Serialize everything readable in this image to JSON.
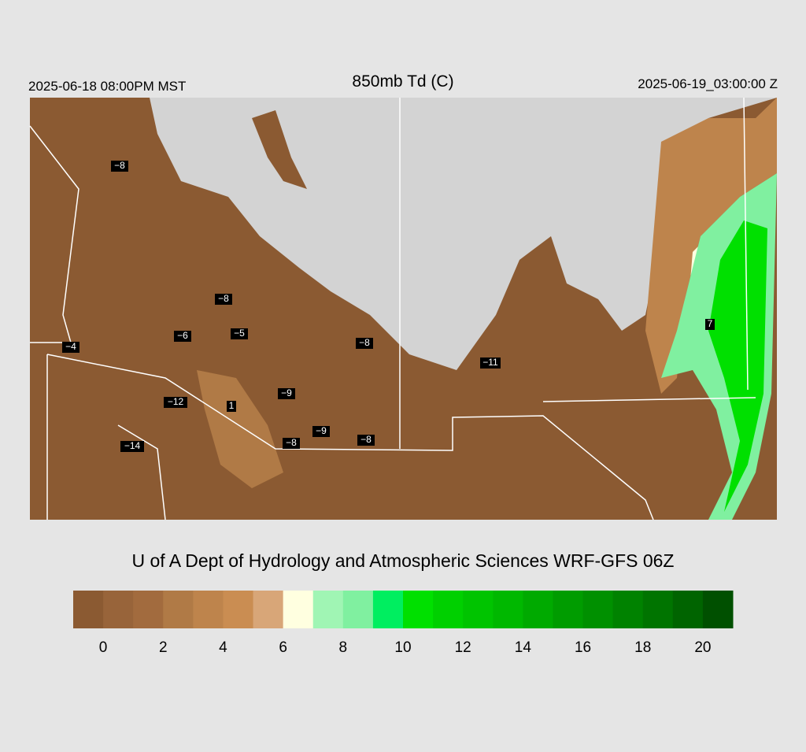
{
  "header": {
    "valid_local": "2025-06-18 08:00PM MST",
    "title": "850mb Td (C)",
    "valid_utc": "2025-06-19_03:00:00 Z"
  },
  "map": {
    "station_labels": [
      "−8",
      "−8",
      "−4",
      "−6",
      "−5",
      "−8",
      "−12",
      "1",
      "−9",
      "−9",
      "−8",
      "−8",
      "−14",
      "−11",
      "7"
    ]
  },
  "credit": "U of A Dept of Hydrology and Atmospheric Sciences WRF-GFS 06Z",
  "colorbar": {
    "range": [
      -1,
      21
    ],
    "colors": [
      "#8b5a32",
      "#98643a",
      "#a26b3e",
      "#b07a46",
      "#be844c",
      "#ca8d52",
      "#d8a678",
      "#ffffe0",
      "#a0f5b4",
      "#80f0a0",
      "#00ee60",
      "#00e000",
      "#00d000",
      "#00c400",
      "#00b800",
      "#00aa00",
      "#009c00",
      "#009000",
      "#008200",
      "#007400",
      "#006400",
      "#005000"
    ],
    "ticks": [
      0,
      2,
      4,
      6,
      8,
      10,
      12,
      14,
      16,
      18,
      20
    ]
  }
}
